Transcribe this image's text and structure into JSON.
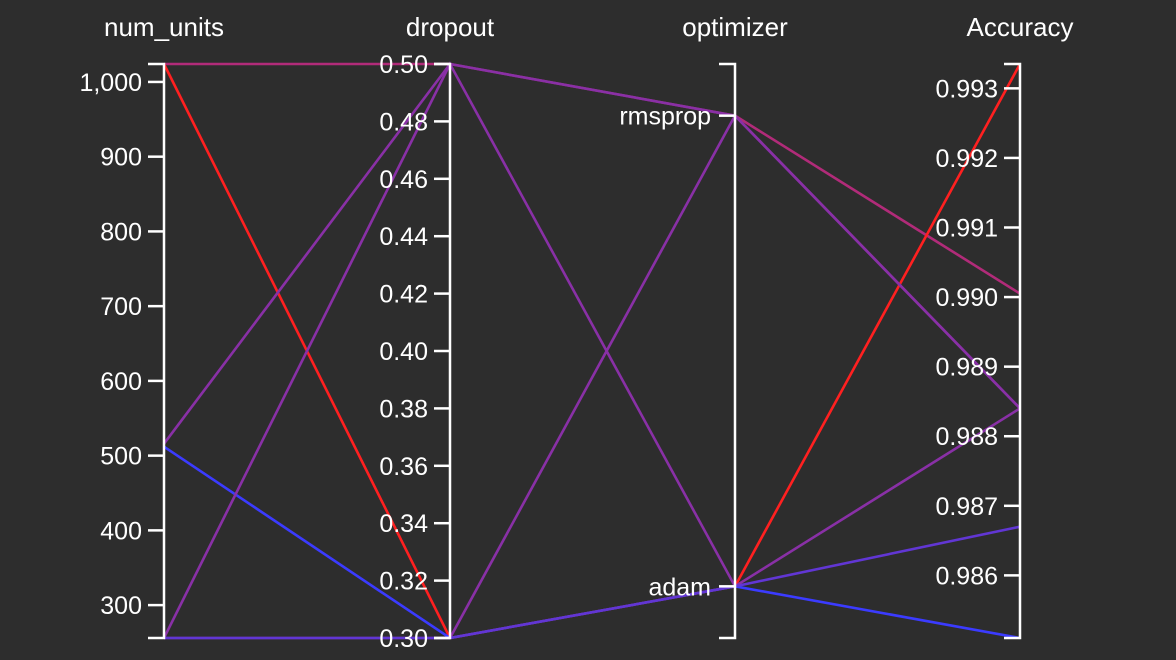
{
  "chart_data": {
    "type": "parallel_coordinates",
    "axes": [
      {
        "name": "num_units",
        "kind": "numeric",
        "range": [
          256,
          1024
        ],
        "ticks": [
          300,
          400,
          500,
          600,
          700,
          800,
          900,
          1000
        ],
        "tick_labels": [
          "300",
          "400",
          "500",
          "600",
          "700",
          "800",
          "900",
          "1,000"
        ]
      },
      {
        "name": "dropout",
        "kind": "numeric",
        "range": [
          0.3,
          0.5
        ],
        "ticks": [
          0.3,
          0.32,
          0.34,
          0.36,
          0.38,
          0.4,
          0.42,
          0.44,
          0.46,
          0.48,
          0.5
        ],
        "tick_labels": [
          "0.30",
          "0.32",
          "0.34",
          "0.36",
          "0.38",
          "0.40",
          "0.42",
          "0.44",
          "0.46",
          "0.48",
          "0.50"
        ]
      },
      {
        "name": "optimizer",
        "kind": "categorical",
        "categories": [
          "adam",
          "rmsprop"
        ]
      },
      {
        "name": "Accuracy",
        "kind": "numeric",
        "range": [
          0.9851,
          0.99335
        ],
        "ticks": [
          0.986,
          0.987,
          0.988,
          0.989,
          0.99,
          0.991,
          0.992,
          0.993
        ],
        "tick_labels": [
          "0.986",
          "0.987",
          "0.988",
          "0.989",
          "0.990",
          "0.991",
          "0.992",
          "0.993"
        ]
      }
    ],
    "colorscale": [
      "#3b3bff",
      "#ff2020"
    ],
    "runs": [
      {
        "num_units": 1024,
        "dropout": 0.5,
        "optimizer": "rmsprop",
        "Accuracy": 0.99005
      },
      {
        "num_units": 1024,
        "dropout": 0.3,
        "optimizer": "adam",
        "Accuracy": 0.99335
      },
      {
        "num_units": 516,
        "dropout": 0.5,
        "optimizer": "rmsprop",
        "Accuracy": 0.9884
      },
      {
        "num_units": 512,
        "dropout": 0.3,
        "optimizer": "adam",
        "Accuracy": 0.9851
      },
      {
        "num_units": 256,
        "dropout": 0.5,
        "optimizer": "adam",
        "Accuracy": 0.9884
      },
      {
        "num_units": 256,
        "dropout": 0.3,
        "optimizer": "rmsprop",
        "Accuracy": 0.9884
      },
      {
        "num_units": 256,
        "dropout": 0.3,
        "optimizer": "adam",
        "Accuracy": 0.9867
      }
    ]
  }
}
